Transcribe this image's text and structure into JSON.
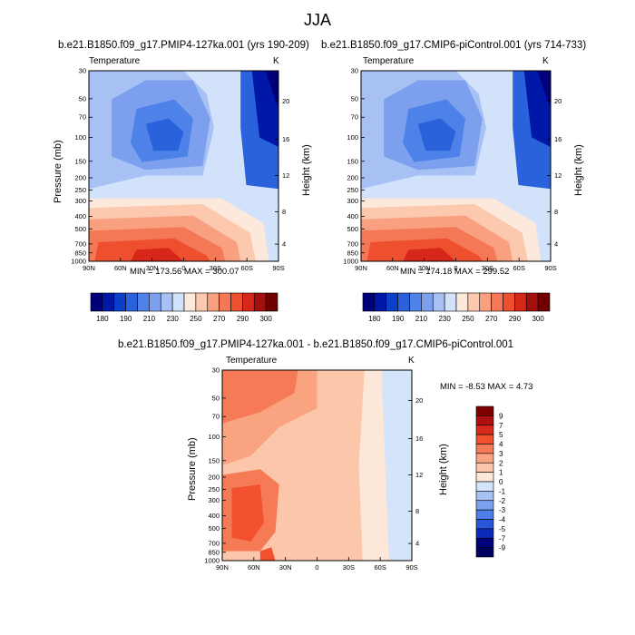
{
  "page_title": "JJA",
  "chart_data": [
    {
      "type": "heatmap",
      "title": "b.e21.B1850.f09_g17.PMIP4-127ka.001 (yrs 190-209)",
      "variable_label": "Temperature",
      "units": "K",
      "xlabel": "",
      "ylabel": "Pressure (mb)",
      "ylabel_right": "Height (km)",
      "x_ticks": [
        "90N",
        "60N",
        "30N",
        "0",
        "30S",
        "60S",
        "90S"
      ],
      "y_ticks": [
        "30",
        "50",
        "70",
        "100",
        "150",
        "200",
        "250",
        "300",
        "400",
        "500",
        "700",
        "850",
        "1000"
      ],
      "y_right_ticks": [
        "20",
        "16",
        "12",
        "8",
        "4"
      ],
      "min": 173.56,
      "max": 300.07,
      "summary_text": "MIN = 173.56  MAX = 300.07",
      "colorbar_labels": [
        "180",
        "190",
        "210",
        "230",
        "250",
        "270",
        "290",
        "300"
      ]
    },
    {
      "type": "heatmap",
      "title": "b.e21.B1850.f09_g17.CMIP6-piControl.001 (yrs 714-733)",
      "variable_label": "Temperature",
      "units": "K",
      "xlabel": "",
      "ylabel": "",
      "ylabel_right": "Height (km)",
      "x_ticks": [
        "90N",
        "60N",
        "30N",
        "0",
        "30S",
        "60S",
        "90S"
      ],
      "y_ticks": [
        "30",
        "50",
        "70",
        "100",
        "150",
        "200",
        "250",
        "300",
        "400",
        "500",
        "700",
        "850",
        "1000"
      ],
      "y_right_ticks": [
        "20",
        "16",
        "12",
        "8",
        "4"
      ],
      "min": 174.18,
      "max": 299.52,
      "summary_text": "MIN = 174.18  MAX = 299.52",
      "colorbar_labels": [
        "180",
        "190",
        "210",
        "230",
        "250",
        "270",
        "290",
        "300"
      ]
    },
    {
      "type": "heatmap",
      "title": "b.e21.B1850.f09_g17.PMIP4-127ka.001 - b.e21.B1850.f09_g17.CMIP6-piControl.001",
      "variable_label": "Temperature",
      "units": "K",
      "xlabel": "",
      "ylabel": "Pressure (mb)",
      "ylabel_right": "Height (km)",
      "x_ticks": [
        "90N",
        "60N",
        "30N",
        "0",
        "30S",
        "60S",
        "90S"
      ],
      "y_ticks": [
        "30",
        "50",
        "70",
        "100",
        "150",
        "200",
        "250",
        "300",
        "400",
        "500",
        "700",
        "850",
        "1000"
      ],
      "y_right_ticks": [
        "20",
        "16",
        "12",
        "8",
        "4"
      ],
      "min": -8.53,
      "max": 4.73,
      "summary_text": "MIN = -8.53  MAX =   4.73",
      "colorbar_labels": [
        "9",
        "7",
        "5",
        "4",
        "3",
        "2",
        "1",
        "0",
        "-1",
        "-2",
        "-3",
        "-4",
        "-5",
        "-7",
        "-9"
      ]
    }
  ],
  "colors": {
    "abs_scale": [
      "#00007a",
      "#0018a8",
      "#0a3fc9",
      "#2a62dc",
      "#4f82e8",
      "#7da0ee",
      "#a8c1f4",
      "#d3e2fb",
      "#fde9dc",
      "#fcc8ae",
      "#f9a080",
      "#f47856",
      "#ee4f2e",
      "#d7261a",
      "#a30e0e",
      "#700000"
    ],
    "diff_scale": [
      "#800000",
      "#b01010",
      "#d82a1a",
      "#f2502e",
      "#f67a56",
      "#f9a380",
      "#fcc6aa",
      "#fde7d8",
      "#d4e4fa",
      "#a8c1f4",
      "#7aa0ee",
      "#4d7de6",
      "#2956d6",
      "#0a2cb8",
      "#00007e",
      "#000060"
    ]
  }
}
